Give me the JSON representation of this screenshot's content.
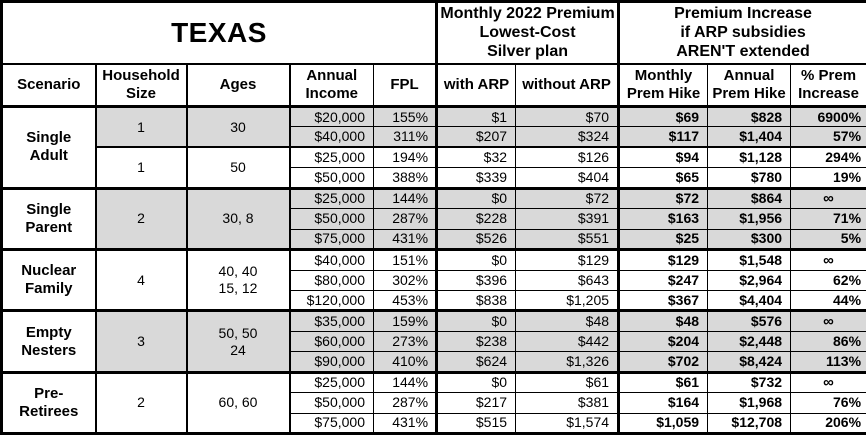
{
  "colors": {
    "shaded": "#d9d9d9",
    "border": "#000000",
    "background": "#ffffff"
  },
  "table": {
    "title": "TEXAS",
    "premium_header": [
      "Monthly 2022 Premium",
      "Lowest-Cost",
      "Silver plan"
    ],
    "increase_header": [
      "Premium Increase",
      "if ARP subsidies",
      "AREN'T extended"
    ],
    "columns": [
      [
        "Scenario"
      ],
      [
        "Household",
        "Size"
      ],
      [
        "Ages"
      ],
      [
        "Annual",
        "Income"
      ],
      [
        "FPL"
      ],
      [
        "with ARP"
      ],
      [
        "without ARP"
      ],
      [
        "Monthly",
        "Prem Hike"
      ],
      [
        "Annual",
        "Prem Hike"
      ],
      [
        "% Prem",
        "Increase"
      ]
    ],
    "groups": [
      {
        "scenario": [
          "Single",
          "Adult"
        ],
        "subgroups": [
          {
            "household": "1",
            "ages": [
              "30"
            ],
            "shaded": true,
            "rows": [
              {
                "income": "$20,000",
                "fpl": "155%",
                "with_arp": "$1",
                "without_arp": "$70",
                "monthly_hike": "$69",
                "annual_hike": "$828",
                "pct_increase": "6900%"
              },
              {
                "income": "$40,000",
                "fpl": "311%",
                "with_arp": "$207",
                "without_arp": "$324",
                "monthly_hike": "$117",
                "annual_hike": "$1,404",
                "pct_increase": "57%"
              }
            ]
          },
          {
            "household": "1",
            "ages": [
              "50"
            ],
            "shaded": false,
            "rows": [
              {
                "income": "$25,000",
                "fpl": "194%",
                "with_arp": "$32",
                "without_arp": "$126",
                "monthly_hike": "$94",
                "annual_hike": "$1,128",
                "pct_increase": "294%"
              },
              {
                "income": "$50,000",
                "fpl": "388%",
                "with_arp": "$339",
                "without_arp": "$404",
                "monthly_hike": "$65",
                "annual_hike": "$780",
                "pct_increase": "19%"
              }
            ]
          }
        ]
      },
      {
        "scenario": [
          "Single",
          "Parent"
        ],
        "subgroups": [
          {
            "household": "2",
            "ages": [
              "30, 8"
            ],
            "shaded": true,
            "rows": [
              {
                "income": "$25,000",
                "fpl": "144%",
                "with_arp": "$0",
                "without_arp": "$72",
                "monthly_hike": "$72",
                "annual_hike": "$864",
                "pct_increase": "∞"
              },
              {
                "income": "$50,000",
                "fpl": "287%",
                "with_arp": "$228",
                "without_arp": "$391",
                "monthly_hike": "$163",
                "annual_hike": "$1,956",
                "pct_increase": "71%"
              },
              {
                "income": "$75,000",
                "fpl": "431%",
                "with_arp": "$526",
                "without_arp": "$551",
                "monthly_hike": "$25",
                "annual_hike": "$300",
                "pct_increase": "5%"
              }
            ]
          }
        ]
      },
      {
        "scenario": [
          "Nuclear",
          "Family"
        ],
        "subgroups": [
          {
            "household": "4",
            "ages": [
              "40, 40",
              "15, 12"
            ],
            "shaded": false,
            "rows": [
              {
                "income": "$40,000",
                "fpl": "151%",
                "with_arp": "$0",
                "without_arp": "$129",
                "monthly_hike": "$129",
                "annual_hike": "$1,548",
                "pct_increase": "∞"
              },
              {
                "income": "$80,000",
                "fpl": "302%",
                "with_arp": "$396",
                "without_arp": "$643",
                "monthly_hike": "$247",
                "annual_hike": "$2,964",
                "pct_increase": "62%"
              },
              {
                "income": "$120,000",
                "fpl": "453%",
                "with_arp": "$838",
                "without_arp": "$1,205",
                "monthly_hike": "$367",
                "annual_hike": "$4,404",
                "pct_increase": "44%"
              }
            ]
          }
        ]
      },
      {
        "scenario": [
          "Empty",
          "Nesters"
        ],
        "subgroups": [
          {
            "household": "3",
            "ages": [
              "50, 50",
              "24"
            ],
            "shaded": true,
            "rows": [
              {
                "income": "$35,000",
                "fpl": "159%",
                "with_arp": "$0",
                "without_arp": "$48",
                "monthly_hike": "$48",
                "annual_hike": "$576",
                "pct_increase": "∞"
              },
              {
                "income": "$60,000",
                "fpl": "273%",
                "with_arp": "$238",
                "without_arp": "$442",
                "monthly_hike": "$204",
                "annual_hike": "$2,448",
                "pct_increase": "86%"
              },
              {
                "income": "$90,000",
                "fpl": "410%",
                "with_arp": "$624",
                "without_arp": "$1,326",
                "monthly_hike": "$702",
                "annual_hike": "$8,424",
                "pct_increase": "113%"
              }
            ]
          }
        ]
      },
      {
        "scenario": [
          "Pre-",
          "Retirees"
        ],
        "subgroups": [
          {
            "household": "2",
            "ages": [
              "60, 60"
            ],
            "shaded": false,
            "rows": [
              {
                "income": "$25,000",
                "fpl": "144%",
                "with_arp": "$0",
                "without_arp": "$61",
                "monthly_hike": "$61",
                "annual_hike": "$732",
                "pct_increase": "∞"
              },
              {
                "income": "$50,000",
                "fpl": "287%",
                "with_arp": "$217",
                "without_arp": "$381",
                "monthly_hike": "$164",
                "annual_hike": "$1,968",
                "pct_increase": "76%"
              },
              {
                "income": "$75,000",
                "fpl": "431%",
                "with_arp": "$515",
                "without_arp": "$1,574",
                "monthly_hike": "$1,059",
                "annual_hike": "$12,708",
                "pct_increase": "206%"
              }
            ]
          }
        ]
      }
    ]
  },
  "chart_data": {
    "type": "table",
    "title": "TEXAS",
    "section_headers": [
      "Monthly 2022 Premium Lowest-Cost Silver plan",
      "Premium Increase if ARP subsidies AREN'T extended"
    ],
    "columns": [
      "Scenario",
      "Household Size",
      "Ages",
      "Annual Income",
      "FPL",
      "with ARP",
      "without ARP",
      "Monthly Prem Hike",
      "Annual Prem Hike",
      "% Prem Increase"
    ],
    "rows": [
      [
        "Single Adult",
        "1",
        "30",
        "$20,000",
        "155%",
        "$1",
        "$70",
        "$69",
        "$828",
        "6900%"
      ],
      [
        "Single Adult",
        "1",
        "30",
        "$40,000",
        "311%",
        "$207",
        "$324",
        "$117",
        "$1,404",
        "57%"
      ],
      [
        "Single Adult",
        "1",
        "50",
        "$25,000",
        "194%",
        "$32",
        "$126",
        "$94",
        "$1,128",
        "294%"
      ],
      [
        "Single Adult",
        "1",
        "50",
        "$50,000",
        "388%",
        "$339",
        "$404",
        "$65",
        "$780",
        "19%"
      ],
      [
        "Single Parent",
        "2",
        "30, 8",
        "$25,000",
        "144%",
        "$0",
        "$72",
        "$72",
        "$864",
        "∞"
      ],
      [
        "Single Parent",
        "2",
        "30, 8",
        "$50,000",
        "287%",
        "$228",
        "$391",
        "$163",
        "$1,956",
        "71%"
      ],
      [
        "Single Parent",
        "2",
        "30, 8",
        "$75,000",
        "431%",
        "$526",
        "$551",
        "$25",
        "$300",
        "5%"
      ],
      [
        "Nuclear Family",
        "4",
        "40, 40, 15, 12",
        "$40,000",
        "151%",
        "$0",
        "$129",
        "$129",
        "$1,548",
        "∞"
      ],
      [
        "Nuclear Family",
        "4",
        "40, 40, 15, 12",
        "$80,000",
        "302%",
        "$396",
        "$643",
        "$247",
        "$2,964",
        "62%"
      ],
      [
        "Nuclear Family",
        "4",
        "40, 40, 15, 12",
        "$120,000",
        "453%",
        "$838",
        "$1,205",
        "$367",
        "$4,404",
        "44%"
      ],
      [
        "Empty Nesters",
        "3",
        "50, 50, 24",
        "$35,000",
        "159%",
        "$0",
        "$48",
        "$48",
        "$576",
        "∞"
      ],
      [
        "Empty Nesters",
        "3",
        "50, 50, 24",
        "$60,000",
        "273%",
        "$238",
        "$442",
        "$204",
        "$2,448",
        "86%"
      ],
      [
        "Empty Nesters",
        "3",
        "50, 50, 24",
        "$90,000",
        "410%",
        "$624",
        "$1,326",
        "$702",
        "$8,424",
        "113%"
      ],
      [
        "Pre-Retirees",
        "2",
        "60, 60",
        "$25,000",
        "144%",
        "$0",
        "$61",
        "$61",
        "$732",
        "∞"
      ],
      [
        "Pre-Retirees",
        "2",
        "60, 60",
        "$50,000",
        "287%",
        "$217",
        "$381",
        "$164",
        "$1,968",
        "76%"
      ],
      [
        "Pre-Retirees",
        "2",
        "60, 60",
        "$75,000",
        "431%",
        "$515",
        "$1,574",
        "$1,059",
        "$12,708",
        "206%"
      ]
    ]
  }
}
